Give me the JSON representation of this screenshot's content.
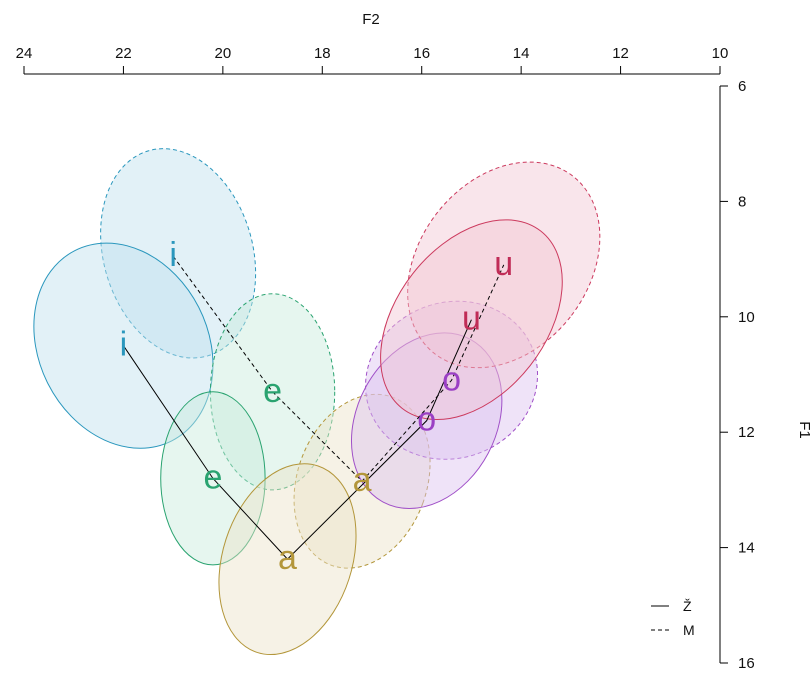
{
  "chart_data": {
    "type": "scatter",
    "xlabel": "F2",
    "ylabel": "F1",
    "xlim": [
      24,
      10
    ],
    "ylim": [
      16,
      6
    ],
    "xticks": [
      24,
      22,
      20,
      18,
      16,
      14,
      12,
      10
    ],
    "yticks": [
      6,
      8,
      10,
      12,
      14,
      16
    ],
    "x_axis_position": "top",
    "y_axis_position": "right",
    "x_reversed": true,
    "y_reversed": true,
    "grid": false,
    "legend_position": "bottom-right",
    "legend": [
      {
        "label": "Ž",
        "linestyle": "solid"
      },
      {
        "label": "M",
        "linestyle": "dashed"
      }
    ],
    "series": [
      {
        "name": "Ž",
        "linestyle": "solid",
        "points": [
          {
            "vowel": "i",
            "x": 22.0,
            "y": 10.5
          },
          {
            "vowel": "e",
            "x": 20.2,
            "y": 12.8
          },
          {
            "vowel": "a",
            "x": 18.7,
            "y": 14.2
          },
          {
            "vowel": "o",
            "x": 15.9,
            "y": 11.8
          },
          {
            "vowel": "u",
            "x": 15.0,
            "y": 10.05
          }
        ]
      },
      {
        "name": "M",
        "linestyle": "dashed",
        "points": [
          {
            "vowel": "i",
            "x": 21.0,
            "y": 8.95
          },
          {
            "vowel": "e",
            "x": 19.0,
            "y": 11.3
          },
          {
            "vowel": "a",
            "x": 17.2,
            "y": 12.85
          },
          {
            "vowel": "o",
            "x": 15.4,
            "y": 11.1
          },
          {
            "vowel": "u",
            "x": 14.35,
            "y": 9.1
          }
        ]
      }
    ],
    "ellipses": [
      {
        "series": "M",
        "vowel": "i",
        "cx": 20.9,
        "cy": 8.9,
        "rx": 1.5,
        "ry": 1.85,
        "rotate": -16
      },
      {
        "series": "Ž",
        "vowel": "i",
        "cx": 22.0,
        "cy": 10.5,
        "rx": 1.7,
        "ry": 1.85,
        "rotate": -27
      },
      {
        "series": "M",
        "vowel": "e",
        "cx": 19.0,
        "cy": 11.3,
        "rx": 1.25,
        "ry": 1.7,
        "rotate": 0
      },
      {
        "series": "Ž",
        "vowel": "e",
        "cx": 20.2,
        "cy": 12.8,
        "rx": 1.05,
        "ry": 1.5,
        "rotate": 0
      },
      {
        "series": "M",
        "vowel": "a",
        "cx": 17.2,
        "cy": 12.85,
        "rx": 1.3,
        "ry": 1.55,
        "rotate": 20
      },
      {
        "series": "Ž",
        "vowel": "a",
        "cx": 18.7,
        "cy": 14.2,
        "rx": 1.3,
        "ry": 1.7,
        "rotate": 18
      },
      {
        "series": "M",
        "vowel": "o",
        "cx": 15.4,
        "cy": 11.1,
        "rx": 1.75,
        "ry": 1.35,
        "rotate": -20
      },
      {
        "series": "Ž",
        "vowel": "o",
        "cx": 15.9,
        "cy": 11.8,
        "rx": 1.4,
        "ry": 1.6,
        "rotate": 28
      },
      {
        "series": "M",
        "vowel": "u",
        "cx": 14.35,
        "cy": 9.1,
        "rx": 1.7,
        "ry": 1.95,
        "rotate": 38
      },
      {
        "series": "Ž",
        "vowel": "u",
        "cx": 15.0,
        "cy": 10.05,
        "rx": 1.5,
        "ry": 1.95,
        "rotate": 38
      }
    ],
    "vowel_colors": {
      "i": {
        "stroke": "#2a97bd",
        "fill": "#bfe0ee",
        "text": "#2a97bd"
      },
      "e": {
        "stroke": "#2aa370",
        "fill": "#c7eadb",
        "text": "#2aa370"
      },
      "a": {
        "stroke": "#b3963a",
        "fill": "#ece3c8",
        "text": "#b3963a"
      },
      "o": {
        "stroke": "#a050c8",
        "fill": "#dcc1ef",
        "text": "#9a3fc4"
      },
      "u": {
        "stroke": "#cc3a5e",
        "fill": "#f2c6d2",
        "text": "#c02c57"
      }
    }
  }
}
